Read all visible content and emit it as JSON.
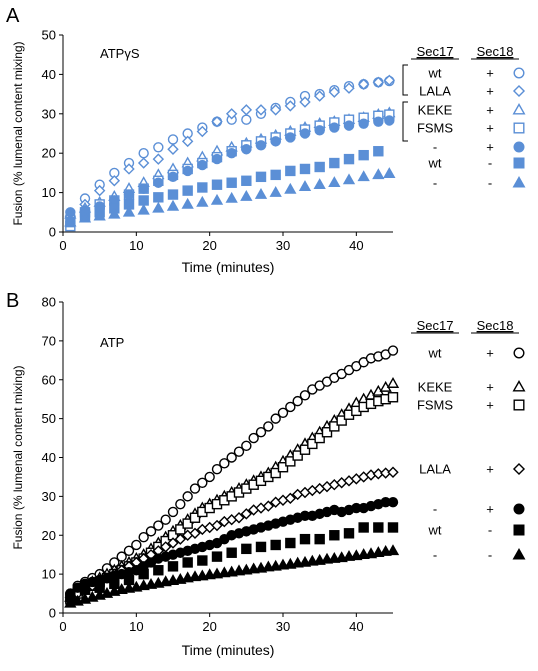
{
  "chart_data": [
    {
      "panel": "A",
      "type": "scatter",
      "condition": "ATPγS",
      "color": "#5b8fd6",
      "xlabel": "Time (minutes)",
      "ylabel": "Fusion (% lumenal content mixing)",
      "xlim": [
        0,
        45
      ],
      "ylim": [
        0,
        50
      ],
      "xticks": [
        0,
        10,
        20,
        30,
        40
      ],
      "yticks": [
        0,
        10,
        20,
        30,
        40,
        50
      ],
      "legend_headers": [
        "Sec17",
        "Sec18"
      ],
      "series": [
        {
          "sec17": "wt",
          "sec18": "+",
          "marker": "circle-open",
          "x": [
            1,
            3,
            5,
            7,
            9,
            11,
            13,
            15,
            17,
            19,
            21,
            23,
            25,
            27,
            29,
            31,
            33,
            35,
            37,
            39,
            41,
            43,
            44.5
          ],
          "y": [
            4,
            8.5,
            12,
            15,
            17.5,
            20,
            21.5,
            23.5,
            25,
            26.5,
            28,
            28.5,
            28.5,
            30,
            31.5,
            33,
            34.5,
            35,
            36,
            37,
            37.5,
            38,
            38.3
          ]
        },
        {
          "sec17": "LALA",
          "sec18": "+",
          "marker": "diamond-open",
          "x": [
            1,
            3,
            5,
            7,
            9,
            11,
            13,
            15,
            17,
            19,
            21,
            23,
            25,
            27,
            29,
            31,
            33,
            35,
            37,
            39,
            41,
            43,
            44.5
          ],
          "y": [
            4,
            7,
            10.5,
            13,
            16,
            17.5,
            18.5,
            21,
            23,
            25.5,
            28,
            30,
            31,
            31,
            31,
            32,
            33,
            34.5,
            35.5,
            36.5,
            37.5,
            38,
            38.5
          ]
        },
        {
          "sec17": "KEKE",
          "sec18": "+",
          "marker": "triangle-open",
          "x": [
            1,
            3,
            5,
            7,
            9,
            11,
            13,
            15,
            17,
            19,
            21,
            23,
            25,
            27,
            29,
            31,
            33,
            35,
            37,
            39,
            41,
            43,
            44.5
          ],
          "y": [
            4.5,
            6,
            7.5,
            9,
            11,
            12.5,
            14.5,
            16,
            17.5,
            19,
            20.5,
            21.5,
            22.5,
            23.5,
            24.5,
            25.5,
            26.5,
            27.5,
            28,
            28.5,
            29,
            29.8,
            30.2
          ]
        },
        {
          "sec17": "FSMS",
          "sec18": "+",
          "marker": "square-open",
          "x": [
            1,
            3,
            5,
            7,
            9,
            11,
            13,
            15,
            17,
            19,
            21,
            23,
            25,
            27,
            29,
            31,
            33,
            35,
            37,
            39,
            41,
            43,
            44.5
          ],
          "y": [
            1.5,
            5,
            7,
            8,
            9.5,
            11,
            13,
            14.5,
            16,
            17.5,
            19,
            20.5,
            22,
            23,
            24,
            25,
            26,
            27,
            27.8,
            28.5,
            29,
            29.5,
            29.8
          ]
        },
        {
          "sec17": "-",
          "sec18": "+",
          "marker": "circle-filled",
          "x": [
            1,
            3,
            5,
            7,
            9,
            11,
            13,
            15,
            17,
            19,
            21,
            23,
            25,
            27,
            29,
            31,
            33,
            35,
            37,
            39,
            41,
            43,
            44.5
          ],
          "y": [
            5,
            5.5,
            6.5,
            8,
            9.5,
            11,
            12.5,
            14,
            15.5,
            17,
            18.5,
            20,
            21,
            22,
            23,
            24,
            25,
            25.8,
            26.5,
            27,
            27.5,
            28,
            28.3
          ]
        },
        {
          "sec17": "wt",
          "sec18": "-",
          "marker": "square-filled",
          "x": [
            1,
            3,
            5,
            7,
            9,
            11,
            13,
            15,
            17,
            19,
            21,
            23,
            25,
            27,
            29,
            31,
            33,
            35,
            37,
            39,
            41,
            43
          ],
          "y": [
            2.5,
            4,
            5,
            6,
            7,
            8,
            8.8,
            9.5,
            10.5,
            11.3,
            12,
            12.5,
            13,
            14,
            14.5,
            15.5,
            16,
            16.5,
            17.5,
            18.5,
            19.5,
            20.5
          ]
        },
        {
          "sec17": "-",
          "sec18": "-",
          "marker": "triangle-filled",
          "x": [
            1,
            3,
            5,
            7,
            9,
            11,
            13,
            15,
            17,
            19,
            21,
            23,
            25,
            27,
            29,
            31,
            33,
            35,
            37,
            39,
            41,
            43,
            44.5
          ],
          "y": [
            2.5,
            3.5,
            4,
            4.5,
            5,
            5.5,
            6,
            6.5,
            7,
            7.5,
            8,
            8.5,
            9,
            9.5,
            10,
            10.8,
            11.5,
            12,
            12.5,
            13.2,
            14,
            14.5,
            14.8
          ]
        }
      ]
    },
    {
      "panel": "B",
      "type": "scatter",
      "condition": "ATP",
      "color": "#000000",
      "xlabel": "Time (minutes)",
      "ylabel": "Fusion (% lumenal content mixing)",
      "xlim": [
        0,
        45
      ],
      "ylim": [
        0,
        80
      ],
      "xticks": [
        0,
        10,
        20,
        30,
        40
      ],
      "yticks": [
        0,
        10,
        20,
        30,
        40,
        50,
        60,
        70,
        80
      ],
      "legend_headers": [
        "Sec17",
        "Sec18"
      ],
      "series": [
        {
          "sec17": "wt",
          "sec18": "+",
          "marker": "circle-open",
          "x": [
            1,
            2,
            3,
            4,
            5,
            6,
            7,
            8,
            9,
            10,
            11,
            12,
            13,
            14,
            15,
            16,
            17,
            18,
            19,
            20,
            21,
            22,
            23,
            24,
            25,
            26,
            27,
            28,
            29,
            30,
            31,
            32,
            33,
            34,
            35,
            36,
            37,
            38,
            39,
            40,
            41,
            42,
            43,
            44,
            45
          ],
          "y": [
            5,
            7,
            8,
            9,
            10,
            11.5,
            13,
            14.5,
            16,
            17.5,
            19.5,
            21,
            22.5,
            24,
            26,
            28,
            30,
            32,
            33.5,
            35,
            37,
            38.5,
            40,
            41.5,
            43,
            45,
            46.5,
            48,
            50,
            51.5,
            53,
            54.5,
            56,
            57.5,
            58.5,
            59.5,
            60.5,
            61.5,
            62.5,
            63.5,
            64.5,
            65.5,
            66,
            66.5,
            67.5
          ]
        },
        {
          "sec17": "KEKE",
          "sec18": "+",
          "marker": "triangle-open",
          "x": [
            1,
            2,
            3,
            4,
            5,
            6,
            7,
            8,
            9,
            10,
            11,
            12,
            13,
            14,
            15,
            16,
            17,
            18,
            19,
            20,
            21,
            22,
            23,
            24,
            25,
            26,
            27,
            28,
            29,
            30,
            31,
            32,
            33,
            34,
            35,
            36,
            37,
            38,
            39,
            40,
            41,
            42,
            43,
            44,
            45
          ],
          "y": [
            4,
            5.5,
            7,
            8,
            9,
            10,
            11,
            12,
            13,
            14,
            15,
            16.5,
            18,
            19.5,
            21,
            22.5,
            24,
            25.5,
            27,
            28,
            29,
            30,
            31,
            32,
            33,
            34,
            35,
            36,
            37.5,
            39,
            40.5,
            42,
            43.5,
            45,
            46.5,
            48,
            49.5,
            51,
            52.5,
            54,
            55,
            56,
            57,
            58,
            59
          ]
        },
        {
          "sec17": "FSMS",
          "sec18": "+",
          "marker": "square-open",
          "x": [
            1,
            2,
            3,
            4,
            5,
            6,
            7,
            8,
            9,
            10,
            11,
            12,
            13,
            14,
            15,
            16,
            17,
            18,
            19,
            20,
            21,
            22,
            23,
            24,
            25,
            26,
            27,
            28,
            29,
            30,
            31,
            32,
            33,
            34,
            35,
            36,
            37,
            38,
            39,
            40,
            41,
            42,
            43,
            44,
            45
          ],
          "y": [
            3.5,
            5,
            6,
            7,
            8,
            9,
            10,
            11,
            12,
            13,
            14,
            15.5,
            17,
            18.5,
            20,
            21.5,
            23,
            24.5,
            26,
            27,
            28,
            29,
            30,
            31,
            32,
            33,
            34,
            35,
            36,
            37.5,
            39,
            40.5,
            42,
            43.5,
            45,
            46.5,
            48,
            49.5,
            51,
            52,
            53,
            53.8,
            54.5,
            55,
            55.5
          ]
        },
        {
          "sec17": "LALA",
          "sec18": "+",
          "marker": "diamond-open",
          "x": [
            1,
            2,
            3,
            4,
            5,
            6,
            7,
            8,
            9,
            10,
            11,
            12,
            13,
            14,
            15,
            16,
            17,
            18,
            19,
            20,
            21,
            22,
            23,
            24,
            25,
            26,
            27,
            28,
            29,
            30,
            31,
            32,
            33,
            34,
            35,
            36,
            37,
            38,
            39,
            40,
            41,
            42,
            43,
            44,
            45
          ],
          "y": [
            4,
            5,
            6,
            7,
            8,
            9,
            10,
            11,
            12,
            13,
            14,
            15,
            16,
            17,
            18,
            19,
            20,
            20.5,
            21.5,
            22,
            22.5,
            23.5,
            24,
            24.5,
            25.5,
            26.5,
            27,
            27.5,
            28.5,
            29,
            29.5,
            30.5,
            31,
            31.5,
            32,
            32.5,
            33,
            33.5,
            34,
            34.5,
            35,
            35.5,
            35.8,
            36,
            36.2
          ]
        },
        {
          "sec17": "-",
          "sec18": "+",
          "marker": "circle-filled",
          "x": [
            1,
            2,
            3,
            4,
            5,
            6,
            7,
            8,
            9,
            10,
            11,
            12,
            13,
            14,
            15,
            16,
            17,
            18,
            19,
            20,
            21,
            22,
            23,
            24,
            25,
            26,
            27,
            28,
            29,
            30,
            31,
            32,
            33,
            34,
            35,
            36,
            37,
            38,
            39,
            40,
            41,
            42,
            43,
            44,
            45
          ],
          "y": [
            5,
            6.5,
            7.5,
            8,
            8.5,
            9,
            9.5,
            10,
            10.5,
            11,
            12,
            13,
            14,
            14.5,
            15,
            15.5,
            16,
            16.5,
            17,
            17.5,
            18,
            19,
            20,
            20.5,
            21,
            21.5,
            22,
            22.5,
            23,
            23.5,
            24,
            24.5,
            25,
            25,
            25.5,
            26,
            26.5,
            26,
            26.5,
            27,
            27,
            27.5,
            28,
            28.5,
            28.5
          ]
        },
        {
          "sec17": "wt",
          "sec18": "-",
          "marker": "square-filled",
          "x": [
            1,
            3,
            5,
            7,
            9,
            11,
            13,
            15,
            17,
            19,
            21,
            23,
            25,
            27,
            29,
            31,
            33,
            35,
            37,
            39,
            41,
            43,
            45
          ],
          "y": [
            4,
            6,
            6.5,
            7.5,
            8.5,
            10,
            11,
            12,
            13,
            13.5,
            14.5,
            15.5,
            16.5,
            17,
            17.5,
            18,
            19,
            19,
            20,
            20.5,
            22,
            22,
            22
          ]
        },
        {
          "sec17": "-",
          "sec18": "-",
          "marker": "triangle-filled",
          "x": [
            1,
            2,
            3,
            4,
            5,
            6,
            7,
            8,
            9,
            10,
            11,
            12,
            13,
            14,
            15,
            16,
            17,
            18,
            19,
            20,
            21,
            22,
            23,
            24,
            25,
            26,
            27,
            28,
            29,
            30,
            31,
            32,
            33,
            34,
            35,
            36,
            37,
            38,
            39,
            40,
            41,
            42,
            43,
            44,
            45
          ],
          "y": [
            2.5,
            3,
            3.5,
            4,
            4.5,
            5,
            5.5,
            6,
            6.3,
            6.6,
            7,
            7.3,
            7.6,
            8,
            8.3,
            8.6,
            9,
            9.3,
            9.5,
            9.8,
            10,
            10.3,
            10.5,
            10.8,
            11,
            11.3,
            11.5,
            11.8,
            12,
            12.3,
            12.5,
            12.8,
            13,
            13.3,
            13.5,
            13.8,
            14,
            14.2,
            14.5,
            14.7,
            15,
            15.2,
            15.5,
            15.8,
            16
          ]
        }
      ]
    }
  ]
}
